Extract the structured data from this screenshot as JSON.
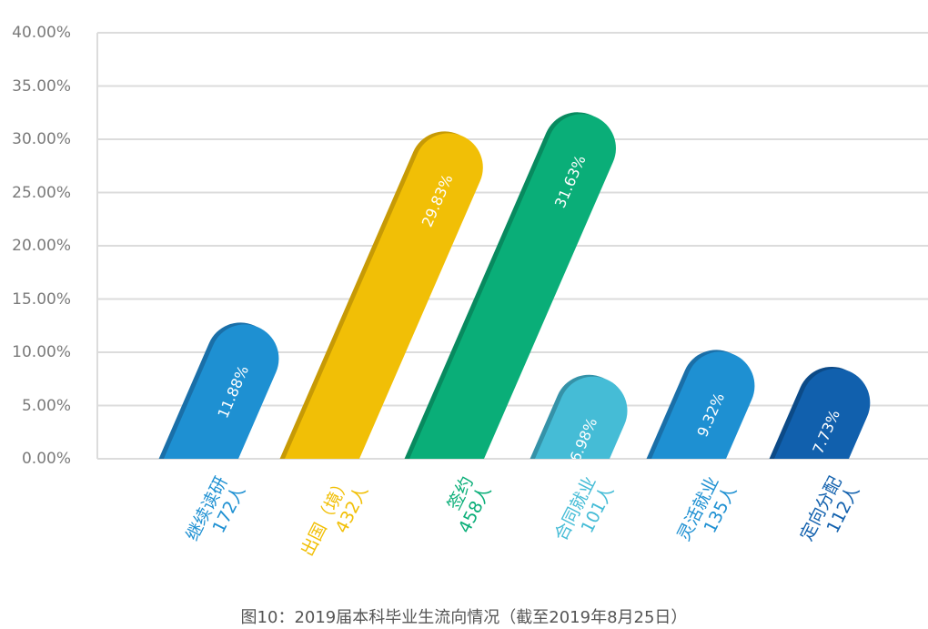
{
  "chart_data": {
    "type": "bar",
    "title": "图10：2019届本科毕业生流向情况（截至2019年8月25日）",
    "xlabel": "",
    "ylabel": "",
    "ylim": [
      0,
      40
    ],
    "grid": true,
    "legend": "none",
    "y_ticks": [
      "0.00%",
      "5.00%",
      "10.00%",
      "15.00%",
      "20.00%",
      "25.00%",
      "30.00%",
      "35.00%",
      "40.00%"
    ],
    "categories": [
      "继续读研",
      "出国（境）",
      "签约",
      "合同就业",
      "灵活就业",
      "定向分配"
    ],
    "counts": [
      "172人",
      "432人",
      "458人",
      "101人",
      "135人",
      "112人"
    ],
    "values": [
      11.88,
      29.83,
      31.63,
      6.98,
      9.32,
      7.73
    ],
    "value_labels": [
      "11.88%",
      "29.83%",
      "31.63%",
      "6.98%",
      "9.32%",
      "7.73%"
    ],
    "colors": [
      "#1e90d2",
      "#f1bf06",
      "#0aae78",
      "#45bcd6",
      "#1e90d2",
      "#1160ad"
    ],
    "shade_colors": [
      "#1a6fa8",
      "#c79a05",
      "#088a5f",
      "#3592a8",
      "#1a6fa8",
      "#0c4a87"
    ]
  },
  "caption": "图10：2019届本科毕业生流向情况（截至2019年8月25日）"
}
